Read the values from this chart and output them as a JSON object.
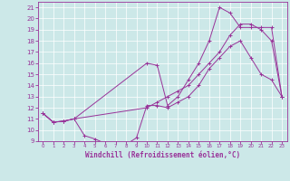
{
  "xlabel": "Windchill (Refroidissement éolien,°C)",
  "xlim": [
    -0.5,
    23.5
  ],
  "ylim": [
    9,
    21.5
  ],
  "xticks": [
    0,
    1,
    2,
    3,
    4,
    5,
    6,
    7,
    8,
    9,
    10,
    11,
    12,
    13,
    14,
    15,
    16,
    17,
    18,
    19,
    20,
    21,
    22,
    23
  ],
  "yticks": [
    9,
    10,
    11,
    12,
    13,
    14,
    15,
    16,
    17,
    18,
    19,
    20,
    21
  ],
  "bg_color": "#cce8e8",
  "line_color": "#993399",
  "line1_x": [
    0,
    1,
    2,
    3,
    4,
    5,
    6,
    7,
    8,
    9,
    10,
    11,
    12,
    13,
    14,
    15,
    16,
    17,
    18,
    19,
    20,
    21,
    22,
    23
  ],
  "line1_y": [
    11.5,
    10.7,
    10.8,
    11.0,
    9.5,
    9.2,
    8.8,
    8.8,
    8.7,
    9.3,
    12.2,
    12.2,
    12.0,
    12.5,
    13.0,
    14.0,
    15.5,
    16.5,
    17.5,
    18.0,
    16.5,
    15.0,
    14.5,
    13.0
  ],
  "line2_x": [
    0,
    1,
    2,
    3,
    10,
    11,
    12,
    13,
    14,
    15,
    16,
    17,
    18,
    19,
    20,
    21,
    22,
    23
  ],
  "line2_y": [
    11.5,
    10.7,
    10.8,
    11.0,
    12.0,
    12.5,
    13.0,
    13.5,
    14.0,
    15.0,
    16.0,
    17.0,
    18.5,
    19.5,
    19.5,
    19.0,
    18.0,
    13.0
  ],
  "line3_x": [
    0,
    1,
    2,
    3,
    10,
    11,
    12,
    13,
    14,
    15,
    16,
    17,
    18,
    19,
    20,
    21,
    22,
    23
  ],
  "line3_y": [
    11.5,
    10.7,
    10.8,
    11.0,
    16.0,
    15.8,
    12.2,
    13.0,
    14.5,
    16.0,
    18.0,
    21.0,
    20.5,
    19.2,
    19.2,
    19.2,
    19.2,
    13.0
  ]
}
